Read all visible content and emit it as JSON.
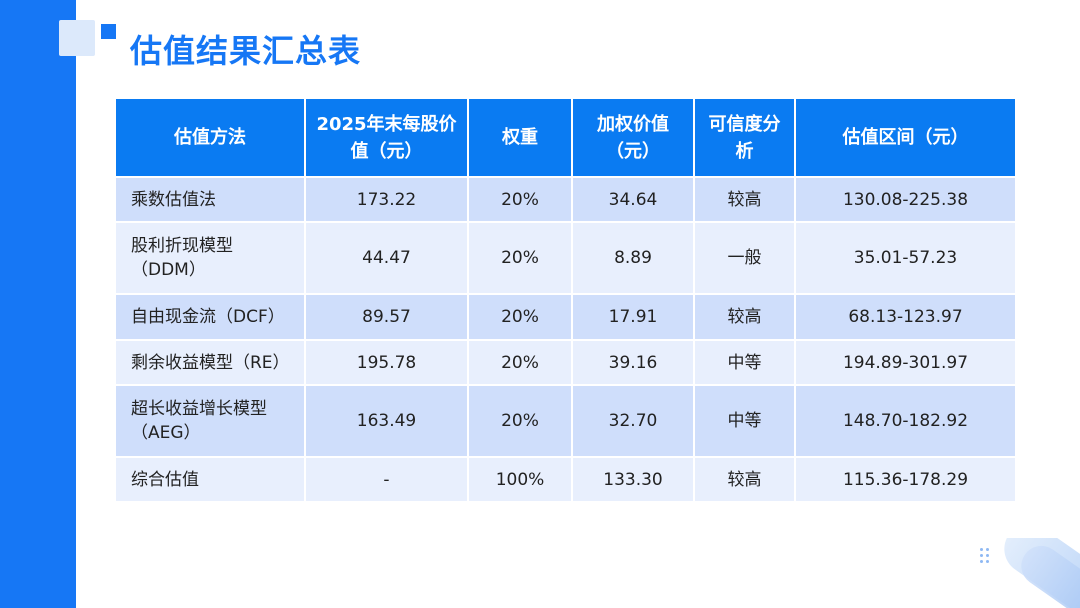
{
  "title": "估值结果汇总表",
  "colors": {
    "accent": "#1677f5",
    "header_bg": "#0a7bf2",
    "row_dark": "#cfdefb",
    "row_light": "#e8effd"
  },
  "table": {
    "headers": [
      "估值方法",
      "2025年末每股价值（元）",
      "权重",
      "加权价值（元）",
      "可信度分析",
      "估值区间（元）"
    ],
    "rows": [
      [
        "乘数估值法",
        "173.22",
        "20%",
        "34.64",
        "较高",
        "130.08-225.38"
      ],
      [
        "股利折现模型（DDM）",
        "44.47",
        "20%",
        "8.89",
        "一般",
        "35.01-57.23"
      ],
      [
        "自由现金流（DCF）",
        "89.57",
        "20%",
        "17.91",
        "较高",
        "68.13-123.97"
      ],
      [
        "剩余收益模型（RE）",
        "195.78",
        "20%",
        "39.16",
        "中等",
        "194.89-301.97"
      ],
      [
        "超长收益增长模型（AEG）",
        "163.49",
        "20%",
        "32.70",
        "中等",
        "148.70-182.92"
      ],
      [
        "综合估值",
        "-",
        "100%",
        "133.30",
        "较高",
        "115.36-178.29"
      ]
    ]
  }
}
